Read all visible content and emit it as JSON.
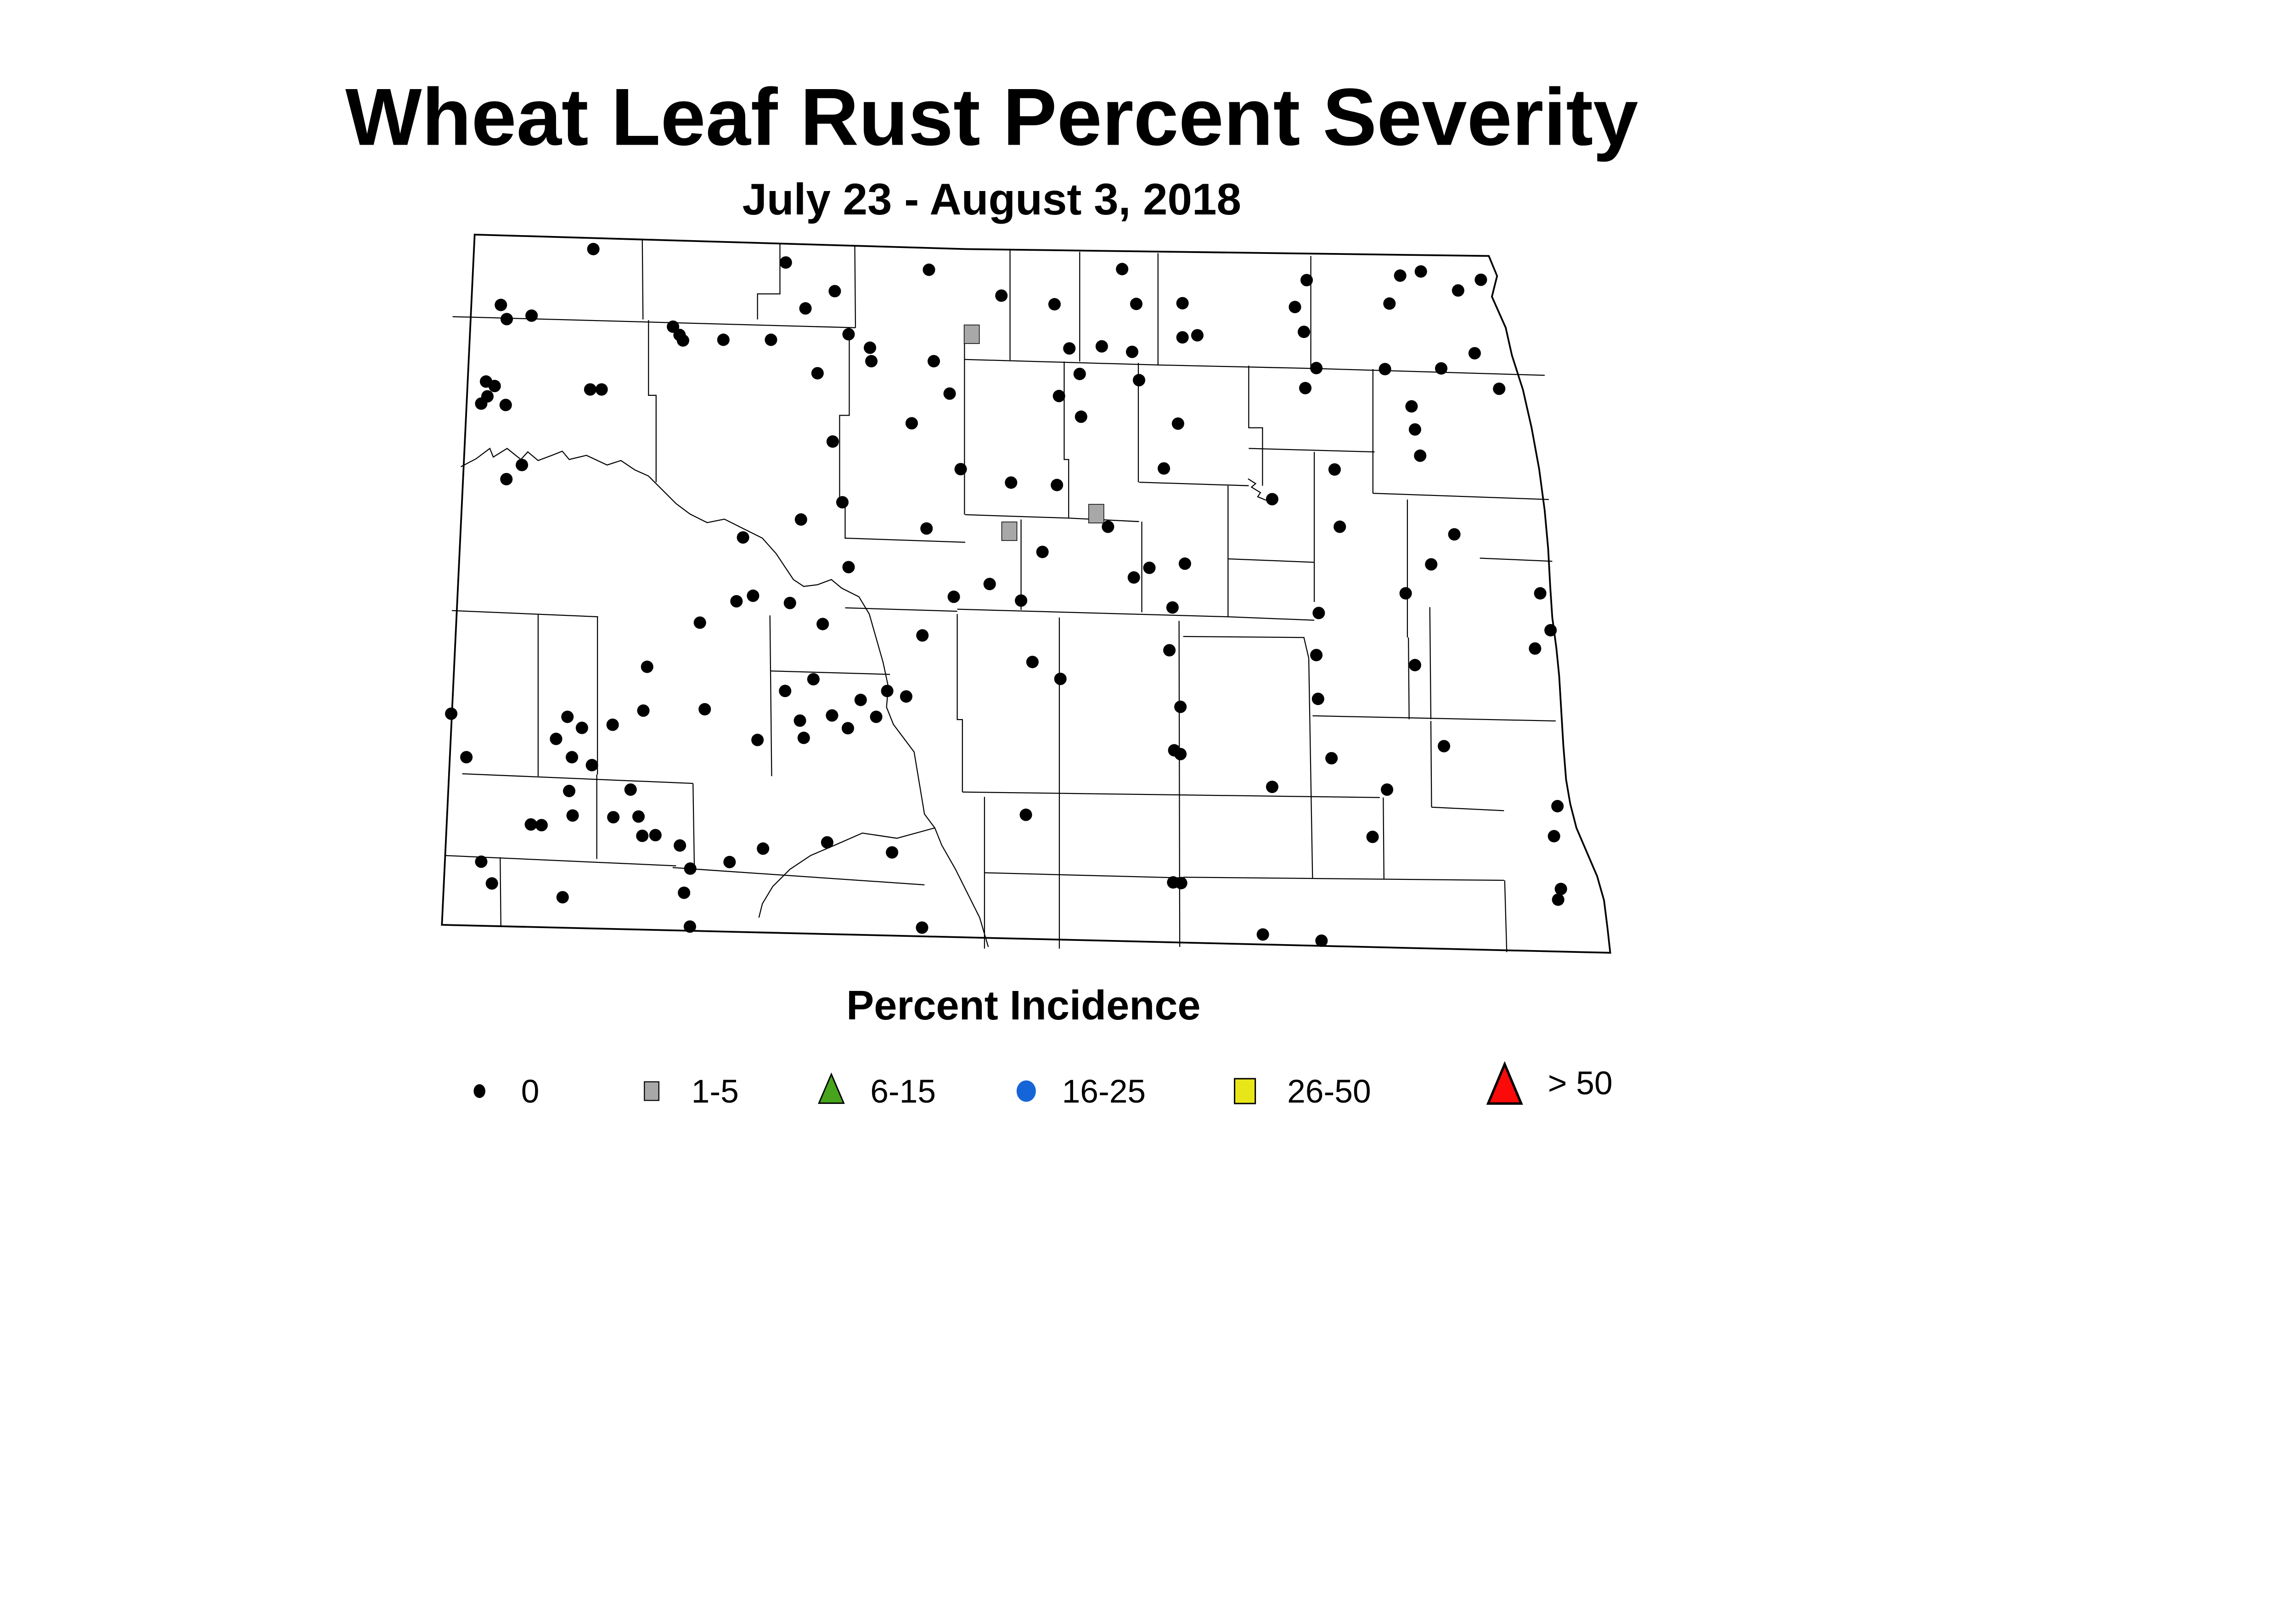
{
  "title": "Wheat Leaf Rust Percent Severity",
  "subtitle": "July 23 - August 3, 2018",
  "legend": {
    "title": "Percent Incidence",
    "items": [
      {
        "label": "0",
        "shape": "small-circle",
        "color": "#000000"
      },
      {
        "label": "1-5",
        "shape": "square",
        "color": "#A8A8A8"
      },
      {
        "label": "6-15",
        "shape": "triangle",
        "color": "#47A41C"
      },
      {
        "label": "16-25",
        "shape": "circle",
        "color": "#1565D8"
      },
      {
        "label": "26-50",
        "shape": "square",
        "color": "#E8E619"
      },
      {
        "label": "> 50",
        "shape": "triangle",
        "color": "#FB0A0A"
      }
    ]
  },
  "chart_data": {
    "type": "scatter",
    "title": "Wheat Leaf Rust Percent Severity",
    "subtitle": "July 23 - August 3, 2018",
    "legend_title": "Percent Incidence",
    "categories": [
      "0",
      "1-5",
      "6-15",
      "16-25",
      "26-50",
      "> 50"
    ],
    "note": "survey points plotted on North Dakota county map; only categories 0 and 1-5 occur"
  },
  "map": {
    "point_radius": 18,
    "square_w": 44,
    "square_h": 54,
    "points_zero": [
      [
        1720,
        722
      ],
      [
        2278,
        761
      ],
      [
        1452,
        884
      ],
      [
        1469,
        925
      ],
      [
        1541,
        915
      ],
      [
        1951,
        947
      ],
      [
        1970,
        971
      ],
      [
        1980,
        987
      ],
      [
        2097,
        985
      ],
      [
        2235,
        985
      ],
      [
        1409,
        1106
      ],
      [
        1434,
        1119
      ],
      [
        1413,
        1149
      ],
      [
        1395,
        1170
      ],
      [
        1466,
        1174
      ],
      [
        1711,
        1129
      ],
      [
        1744,
        1129
      ],
      [
        1513,
        1348
      ],
      [
        1468,
        1389
      ],
      [
        2154,
        1558
      ],
      [
        2322,
        1506
      ],
      [
        2693,
        782
      ],
      [
        2420,
        844
      ],
      [
        2903,
        857
      ],
      [
        2335,
        894
      ],
      [
        3057,
        882
      ],
      [
        3253,
        780
      ],
      [
        3294,
        881
      ],
      [
        3428,
        879
      ],
      [
        2460,
        969
      ],
      [
        2522,
        1008
      ],
      [
        2526,
        1047
      ],
      [
        2707,
        1047
      ],
      [
        3100,
        1010
      ],
      [
        3194,
        1004
      ],
      [
        3282,
        1020
      ],
      [
        3428,
        978
      ],
      [
        3471,
        972
      ],
      [
        2370,
        1082
      ],
      [
        3130,
        1084
      ],
      [
        3302,
        1102
      ],
      [
        2753,
        1141
      ],
      [
        3070,
        1148
      ],
      [
        3134,
        1208
      ],
      [
        2643,
        1227
      ],
      [
        3415,
        1228
      ],
      [
        2414,
        1280
      ],
      [
        2785,
        1360
      ],
      [
        2931,
        1399
      ],
      [
        3064,
        1406
      ],
      [
        3374,
        1358
      ],
      [
        2442,
        1456
      ],
      [
        3212,
        1527
      ],
      [
        2686,
        1532
      ],
      [
        3022,
        1600
      ],
      [
        2460,
        1644
      ],
      [
        3332,
        1646
      ],
      [
        3287,
        1674
      ],
      [
        2869,
        1693
      ],
      [
        2765,
        1730
      ],
      [
        3788,
        812
      ],
      [
        4059,
        799
      ],
      [
        4119,
        787
      ],
      [
        4293,
        811
      ],
      [
        4227,
        842
      ],
      [
        4028,
        880
      ],
      [
        3754,
        890
      ],
      [
        3780,
        962
      ],
      [
        4275,
        1024
      ],
      [
        3816,
        1067
      ],
      [
        4015,
        1070
      ],
      [
        4178,
        1068
      ],
      [
        3784,
        1125
      ],
      [
        4346,
        1127
      ],
      [
        4092,
        1178
      ],
      [
        4102,
        1245
      ],
      [
        4117,
        1321
      ],
      [
        3869,
        1361
      ],
      [
        3688,
        1447
      ],
      [
        3884,
        1527
      ],
      [
        4216,
        1549
      ],
      [
        4149,
        1636
      ],
      [
        4075,
        1720
      ],
      [
        4465,
        1720
      ],
      [
        3435,
        1634
      ],
      [
        2135,
        1743
      ],
      [
        2183,
        1727
      ],
      [
        2290,
        1748
      ],
      [
        2029,
        1805
      ],
      [
        1876,
        1933
      ],
      [
        2276,
        2003
      ],
      [
        1308,
        2069
      ],
      [
        1645,
        2078
      ],
      [
        1865,
        2060
      ],
      [
        2043,
        2056
      ],
      [
        1687,
        2110
      ],
      [
        1776,
        2101
      ],
      [
        1612,
        2142
      ],
      [
        2196,
        2145
      ],
      [
        2319,
        2089
      ],
      [
        2330,
        2139
      ],
      [
        1352,
        2195
      ],
      [
        1658,
        2195
      ],
      [
        1716,
        2218
      ],
      [
        1650,
        2293
      ],
      [
        1828,
        2289
      ],
      [
        1660,
        2364
      ],
      [
        1539,
        2390
      ],
      [
        1570,
        2392
      ],
      [
        1778,
        2369
      ],
      [
        1851,
        2367
      ],
      [
        1862,
        2423
      ],
      [
        1900,
        2421
      ],
      [
        1971,
        2451
      ],
      [
        2001,
        2518
      ],
      [
        2115,
        2499
      ],
      [
        2212,
        2460
      ],
      [
        1395,
        2498
      ],
      [
        1426,
        2561
      ],
      [
        1631,
        2601
      ],
      [
        1983,
        2588
      ],
      [
        2000,
        2686
      ],
      [
        2960,
        1741
      ],
      [
        3399,
        1761
      ],
      [
        2385,
        1809
      ],
      [
        2674,
        1842
      ],
      [
        2993,
        1919
      ],
      [
        3390,
        1885
      ],
      [
        2358,
        1969
      ],
      [
        2572,
        2003
      ],
      [
        2627,
        2019
      ],
      [
        2495,
        2029
      ],
      [
        3074,
        1968
      ],
      [
        2412,
        2074
      ],
      [
        2540,
        2078
      ],
      [
        2458,
        2111
      ],
      [
        3422,
        2049
      ],
      [
        3404,
        2175
      ],
      [
        3422,
        2186
      ],
      [
        2974,
        2362
      ],
      [
        2398,
        2442
      ],
      [
        2586,
        2471
      ],
      [
        2673,
        2689
      ],
      [
        3401,
        2558
      ],
      [
        3424,
        2560
      ],
      [
        3823,
        1777
      ],
      [
        4495,
        1827
      ],
      [
        4450,
        1880
      ],
      [
        3816,
        1899
      ],
      [
        4102,
        1928
      ],
      [
        3821,
        2026
      ],
      [
        4186,
        2163
      ],
      [
        3860,
        2198
      ],
      [
        3688,
        2281
      ],
      [
        4021,
        2289
      ],
      [
        3979,
        2426
      ],
      [
        3661,
        2709
      ],
      [
        3831,
        2727
      ],
      [
        4515,
        2337
      ],
      [
        4505,
        2424
      ],
      [
        4525,
        2577
      ],
      [
        4517,
        2608
      ]
    ],
    "points_one_to_five": [
      [
        2817,
        969
      ],
      [
        3178,
        1489
      ],
      [
        2926,
        1540
      ]
    ]
  }
}
